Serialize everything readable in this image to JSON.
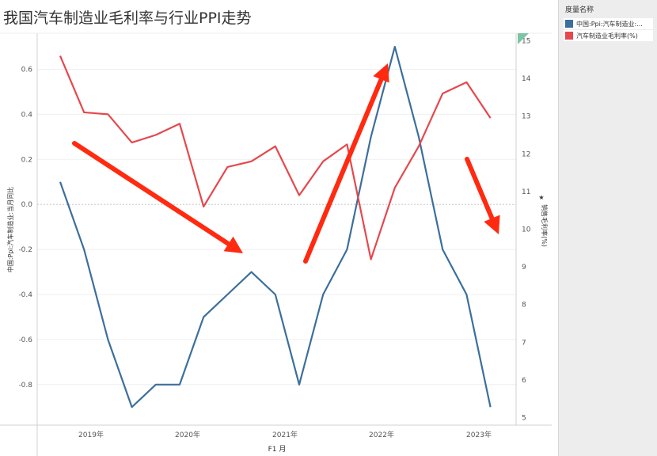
{
  "chart_data": {
    "type": "line",
    "title": "我国汽车制造业毛利率与行业PPI走势",
    "xlabel": "F1 月",
    "ylabel_left": "中国:Ppi:汽车制造业:当月同比",
    "ylabel_right": "销售毛利率(%)",
    "ylim_left": [
      -0.98,
      0.76
    ],
    "ylim_right": [
      4.8,
      15.2
    ],
    "yticks_left": [
      "0.6",
      "0.4",
      "0.2",
      "0.0",
      "-0.2",
      "-0.4",
      "-0.6",
      "-0.8"
    ],
    "yticks_right": [
      "15",
      "14",
      "13",
      "12",
      "11",
      "10",
      "9",
      "8",
      "7",
      "6",
      "5"
    ],
    "xticks": [
      "2019年",
      "2020年",
      "2021年",
      "2022年",
      "2023年"
    ],
    "grid": true,
    "legend_position": "right panel",
    "series": [
      {
        "name": "中国:Ppi:汽车制造业:...",
        "axis": "left",
        "color": "#3c6f9c",
        "x": [
          "2018-09",
          "2018-12",
          "2019-03",
          "2019-06",
          "2019-09",
          "2019-12",
          "2020-03",
          "2020-06",
          "2020-09",
          "2020-12",
          "2021-03",
          "2021-06",
          "2021-09",
          "2021-12",
          "2022-03",
          "2022-06",
          "2022-09",
          "2022-12",
          "2023-03",
          "2023-06"
        ],
        "values": [
          0.1,
          -0.2,
          -0.6,
          -0.9,
          -0.8,
          -0.8,
          -0.5,
          -0.4,
          -0.3,
          -0.4,
          -0.8,
          -0.4,
          -0.2,
          0.3,
          0.7,
          0.3,
          -0.2,
          -0.4,
          -0.9,
          null
        ]
      },
      {
        "name": "汽车制造业毛利率(%)",
        "axis": "right",
        "color": "#e5484d",
        "x": [
          "2018-09",
          "2018-12",
          "2019-03",
          "2019-06",
          "2019-09",
          "2019-12",
          "2020-03",
          "2020-06",
          "2020-09",
          "2020-12",
          "2021-03",
          "2021-06",
          "2021-09",
          "2021-12",
          "2022-03",
          "2022-06",
          "2022-09",
          "2022-12",
          "2023-03",
          "2023-06"
        ],
        "values": [
          14.6,
          13.1,
          13.05,
          12.3,
          12.5,
          12.8,
          10.6,
          11.65,
          11.8,
          12.2,
          10.9,
          11.8,
          12.25,
          9.2,
          11.1,
          12.2,
          13.6,
          13.9,
          12.95,
          null
        ]
      }
    ],
    "annotations": [
      {
        "type": "arrow",
        "color": "#ff2a10",
        "direction": "down-right"
      },
      {
        "type": "arrow",
        "color": "#ff2a10",
        "direction": "up-right"
      },
      {
        "type": "arrow",
        "color": "#ff2a10",
        "direction": "down"
      }
    ]
  },
  "legend": {
    "title": "度量名称",
    "items": [
      {
        "label": "中国:Ppi:汽车制造业:...",
        "color": "#3c6f9c"
      },
      {
        "label": "汽车制造业毛利率(%)",
        "color": "#e5484d"
      }
    ]
  }
}
